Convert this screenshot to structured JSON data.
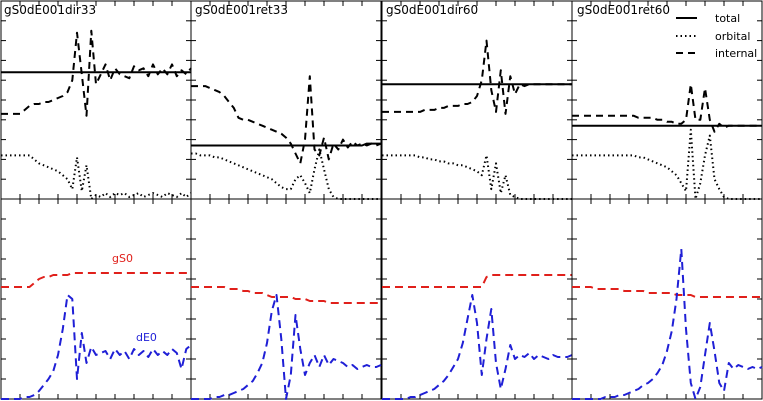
{
  "legend": {
    "items": [
      {
        "name": "total",
        "style": "solid"
      },
      {
        "name": "orbital",
        "style": "dotted"
      },
      {
        "name": "internal",
        "style": "dashed"
      }
    ]
  },
  "annotations": {
    "gS0_label": "gS0",
    "dE0_label": "dE0",
    "gS0_color": "#e0201b",
    "dE0_color": "#1f1fd6"
  },
  "chart_data": {
    "type": "line",
    "panel_titles": [
      "gS0dE001dir33",
      "gS0dE001ret33",
      "gS0dE001dir60",
      "gS0dE001ret60"
    ],
    "grid": false,
    "legend_position": "top-right of last top panel",
    "x": [
      0,
      1,
      2,
      3,
      4,
      5,
      6,
      7,
      8,
      9,
      10,
      11,
      12,
      13,
      14,
      15,
      16,
      17,
      18,
      19,
      20,
      21,
      22,
      23,
      24,
      25,
      26,
      27,
      28,
      29,
      30,
      31,
      32,
      33,
      34,
      35,
      36,
      37,
      38,
      39,
      40
    ],
    "top_ylim": [
      0,
      1
    ],
    "bottom_ylim": [
      0,
      1
    ],
    "top": [
      {
        "total": [
          0.64,
          0.64,
          0.64,
          0.64,
          0.64,
          0.64,
          0.64,
          0.64,
          0.64,
          0.64,
          0.64,
          0.64,
          0.64,
          0.64,
          0.64,
          0.64,
          0.64,
          0.64,
          0.64,
          0.64,
          0.64,
          0.64,
          0.64,
          0.64,
          0.64,
          0.64,
          0.64,
          0.64,
          0.64,
          0.64,
          0.64,
          0.64,
          0.64,
          0.64,
          0.64,
          0.64,
          0.64,
          0.64,
          0.64,
          0.64,
          0.64
        ],
        "internal": [
          0.43,
          0.43,
          0.43,
          0.43,
          0.43,
          0.45,
          0.47,
          0.48,
          0.48,
          0.49,
          0.49,
          0.5,
          0.51,
          0.52,
          0.54,
          0.6,
          0.84,
          0.63,
          0.42,
          0.85,
          0.58,
          0.63,
          0.68,
          0.6,
          0.66,
          0.63,
          0.62,
          0.61,
          0.67,
          0.65,
          0.66,
          0.62,
          0.68,
          0.63,
          0.66,
          0.63,
          0.68,
          0.62,
          0.65,
          0.63,
          0.66
        ],
        "orbital": [
          0.22,
          0.22,
          0.22,
          0.22,
          0.22,
          0.22,
          0.22,
          0.2,
          0.18,
          0.17,
          0.16,
          0.15,
          0.14,
          0.12,
          0.1,
          0.05,
          0.21,
          0.04,
          0.17,
          0.0,
          0.02,
          0.01,
          0.03,
          0.01,
          0.03,
          0.02,
          0.03,
          0.01,
          0.02,
          0.03,
          0.01,
          0.02,
          0.03,
          0.02,
          0.01,
          0.03,
          0.02,
          0.01,
          0.03,
          0.01,
          0.03
        ]
      },
      {
        "total": [
          0.27,
          0.27,
          0.27,
          0.27,
          0.27,
          0.27,
          0.27,
          0.27,
          0.27,
          0.27,
          0.27,
          0.27,
          0.27,
          0.27,
          0.27,
          0.27,
          0.27,
          0.27,
          0.27,
          0.27,
          0.27,
          0.27,
          0.27,
          0.27,
          0.27,
          0.27,
          0.27,
          0.27,
          0.27,
          0.27,
          0.27,
          0.27,
          0.27,
          0.27,
          0.27,
          0.27,
          0.27,
          0.28,
          0.28,
          0.28,
          0.28
        ],
        "internal": [
          0.57,
          0.57,
          0.57,
          0.57,
          0.56,
          0.55,
          0.54,
          0.52,
          0.49,
          0.46,
          0.41,
          0.4,
          0.4,
          0.39,
          0.38,
          0.37,
          0.36,
          0.35,
          0.34,
          0.33,
          0.31,
          0.28,
          0.23,
          0.18,
          0.3,
          0.62,
          0.25,
          0.22,
          0.31,
          0.2,
          0.28,
          0.25,
          0.3,
          0.26,
          0.29,
          0.27,
          0.28,
          0.27,
          0.28,
          0.27,
          0.28
        ],
        "orbital": [
          0.23,
          0.23,
          0.22,
          0.22,
          0.22,
          0.21,
          0.21,
          0.2,
          0.19,
          0.18,
          0.17,
          0.16,
          0.15,
          0.14,
          0.13,
          0.12,
          0.11,
          0.1,
          0.08,
          0.06,
          0.05,
          0.05,
          0.1,
          0.12,
          0.08,
          0.03,
          0.15,
          0.25,
          0.15,
          0.05,
          0.01,
          0.0,
          0.0,
          0.0,
          0.0,
          0.0,
          0.0,
          0.0,
          0.0,
          0.0,
          0.0
        ]
      },
      {
        "total": [
          0.58,
          0.58,
          0.58,
          0.58,
          0.58,
          0.58,
          0.58,
          0.58,
          0.58,
          0.58,
          0.58,
          0.58,
          0.58,
          0.58,
          0.58,
          0.58,
          0.58,
          0.58,
          0.58,
          0.58,
          0.58,
          0.58,
          0.58,
          0.58,
          0.58,
          0.58,
          0.58,
          0.58,
          0.58,
          0.58,
          0.58,
          0.58,
          0.58,
          0.58,
          0.58,
          0.58,
          0.58,
          0.58,
          0.58,
          0.58,
          0.58
        ],
        "internal": [
          0.44,
          0.44,
          0.44,
          0.44,
          0.44,
          0.44,
          0.44,
          0.44,
          0.44,
          0.45,
          0.45,
          0.45,
          0.46,
          0.46,
          0.47,
          0.47,
          0.47,
          0.48,
          0.48,
          0.49,
          0.52,
          0.6,
          0.8,
          0.55,
          0.44,
          0.65,
          0.43,
          0.62,
          0.53,
          0.58,
          0.57,
          0.58,
          0.58,
          0.58,
          0.58,
          0.58,
          0.58,
          0.58,
          0.58,
          0.58,
          0.58
        ],
        "orbital": [
          0.22,
          0.22,
          0.22,
          0.22,
          0.22,
          0.22,
          0.22,
          0.22,
          0.21,
          0.21,
          0.2,
          0.2,
          0.19,
          0.19,
          0.18,
          0.18,
          0.17,
          0.17,
          0.16,
          0.15,
          0.14,
          0.12,
          0.22,
          0.05,
          0.18,
          0.03,
          0.12,
          0.02,
          0.01,
          0.0,
          0.0,
          0.0,
          0.0,
          0.0,
          0.0,
          0.0,
          0.0,
          0.0,
          0.0,
          0.0,
          0.0
        ]
      },
      {
        "total": [
          0.37,
          0.37,
          0.37,
          0.37,
          0.37,
          0.37,
          0.37,
          0.37,
          0.37,
          0.37,
          0.37,
          0.37,
          0.37,
          0.37,
          0.37,
          0.37,
          0.37,
          0.37,
          0.37,
          0.37,
          0.37,
          0.37,
          0.37,
          0.37,
          0.37,
          0.37,
          0.37,
          0.37,
          0.37,
          0.37,
          0.37,
          0.37,
          0.37,
          0.37,
          0.37,
          0.37,
          0.37,
          0.37,
          0.37,
          0.37,
          0.37
        ],
        "internal": [
          0.42,
          0.42,
          0.42,
          0.42,
          0.42,
          0.42,
          0.42,
          0.42,
          0.42,
          0.42,
          0.42,
          0.42,
          0.42,
          0.42,
          0.41,
          0.41,
          0.41,
          0.41,
          0.4,
          0.4,
          0.39,
          0.39,
          0.38,
          0.38,
          0.4,
          0.58,
          0.4,
          0.4,
          0.56,
          0.4,
          0.34,
          0.38,
          0.36,
          0.37,
          0.37,
          0.37,
          0.37,
          0.37,
          0.37,
          0.37,
          0.37
        ],
        "orbital": [
          0.22,
          0.22,
          0.22,
          0.22,
          0.22,
          0.22,
          0.22,
          0.22,
          0.22,
          0.22,
          0.22,
          0.22,
          0.22,
          0.22,
          0.21,
          0.21,
          0.2,
          0.19,
          0.18,
          0.17,
          0.16,
          0.14,
          0.12,
          0.08,
          0.04,
          0.35,
          0.0,
          0.08,
          0.22,
          0.32,
          0.1,
          0.05,
          0.01,
          0.0,
          0.0,
          0.0,
          0.0,
          0.0,
          0.0,
          0.0,
          0.0
        ]
      }
    ],
    "bottom": [
      {
        "gS0": [
          0.56,
          0.56,
          0.56,
          0.56,
          0.56,
          0.56,
          0.56,
          0.58,
          0.6,
          0.61,
          0.61,
          0.62,
          0.62,
          0.62,
          0.62,
          0.63,
          0.63,
          0.63,
          0.63,
          0.63,
          0.63,
          0.63,
          0.63,
          0.63,
          0.63,
          0.63,
          0.63,
          0.63,
          0.63,
          0.63,
          0.63,
          0.63,
          0.63,
          0.63,
          0.63,
          0.63,
          0.63,
          0.63,
          0.63,
          0.63,
          0.63
        ],
        "dE0": [
          0.0,
          0.0,
          0.0,
          0.0,
          0.0,
          0.01,
          0.01,
          0.02,
          0.04,
          0.07,
          0.1,
          0.14,
          0.22,
          0.35,
          0.52,
          0.5,
          0.1,
          0.33,
          0.18,
          0.26,
          0.22,
          0.23,
          0.24,
          0.2,
          0.25,
          0.22,
          0.24,
          0.2,
          0.25,
          0.22,
          0.24,
          0.21,
          0.25,
          0.22,
          0.24,
          0.22,
          0.25,
          0.23,
          0.15,
          0.25,
          0.27
        ]
      },
      {
        "gS0": [
          0.56,
          0.56,
          0.56,
          0.56,
          0.56,
          0.56,
          0.56,
          0.56,
          0.55,
          0.55,
          0.55,
          0.54,
          0.54,
          0.53,
          0.53,
          0.53,
          0.52,
          0.51,
          0.51,
          0.51,
          0.51,
          0.51,
          0.5,
          0.5,
          0.5,
          0.49,
          0.49,
          0.49,
          0.49,
          0.48,
          0.48,
          0.48,
          0.48,
          0.48,
          0.48,
          0.48,
          0.48,
          0.48,
          0.48,
          0.48,
          0.48
        ],
        "dE0": [
          0.0,
          0.0,
          0.0,
          0.0,
          0.0,
          0.01,
          0.01,
          0.02,
          0.02,
          0.03,
          0.04,
          0.05,
          0.07,
          0.09,
          0.13,
          0.18,
          0.28,
          0.44,
          0.52,
          0.3,
          0.0,
          0.12,
          0.42,
          0.25,
          0.12,
          0.18,
          0.22,
          0.16,
          0.22,
          0.17,
          0.2,
          0.19,
          0.18,
          0.16,
          0.17,
          0.15,
          0.16,
          0.17,
          0.16,
          0.16,
          0.17
        ]
      },
      {
        "gS0": [
          0.56,
          0.56,
          0.56,
          0.56,
          0.56,
          0.56,
          0.56,
          0.56,
          0.56,
          0.56,
          0.56,
          0.56,
          0.56,
          0.56,
          0.56,
          0.56,
          0.56,
          0.56,
          0.56,
          0.56,
          0.56,
          0.56,
          0.61,
          0.62,
          0.62,
          0.62,
          0.62,
          0.62,
          0.62,
          0.62,
          0.62,
          0.62,
          0.62,
          0.62,
          0.62,
          0.62,
          0.62,
          0.62,
          0.62,
          0.62,
          0.62
        ],
        "dE0": [
          0.0,
          0.0,
          0.0,
          0.0,
          0.0,
          0.0,
          0.01,
          0.01,
          0.02,
          0.03,
          0.04,
          0.05,
          0.07,
          0.09,
          0.12,
          0.16,
          0.2,
          0.28,
          0.4,
          0.52,
          0.38,
          0.12,
          0.3,
          0.45,
          0.18,
          0.05,
          0.15,
          0.27,
          0.2,
          0.22,
          0.21,
          0.23,
          0.2,
          0.22,
          0.21,
          0.2,
          0.22,
          0.21,
          0.21,
          0.21,
          0.22
        ]
      },
      {
        "gS0": [
          0.56,
          0.56,
          0.56,
          0.56,
          0.56,
          0.55,
          0.55,
          0.55,
          0.55,
          0.55,
          0.55,
          0.54,
          0.54,
          0.54,
          0.54,
          0.54,
          0.53,
          0.53,
          0.53,
          0.53,
          0.53,
          0.53,
          0.52,
          0.52,
          0.52,
          0.52,
          0.51,
          0.51,
          0.51,
          0.51,
          0.51,
          0.51,
          0.51,
          0.51,
          0.51,
          0.51,
          0.51,
          0.51,
          0.51,
          0.51,
          0.51
        ],
        "dE0": [
          0.0,
          0.0,
          0.0,
          0.0,
          0.0,
          0.0,
          0.0,
          0.01,
          0.01,
          0.01,
          0.02,
          0.02,
          0.03,
          0.04,
          0.05,
          0.07,
          0.08,
          0.1,
          0.13,
          0.17,
          0.24,
          0.34,
          0.5,
          0.75,
          0.35,
          0.08,
          0.0,
          0.06,
          0.22,
          0.38,
          0.24,
          0.08,
          0.04,
          0.18,
          0.15,
          0.17,
          0.16,
          0.15,
          0.16,
          0.15,
          0.16
        ]
      }
    ]
  }
}
